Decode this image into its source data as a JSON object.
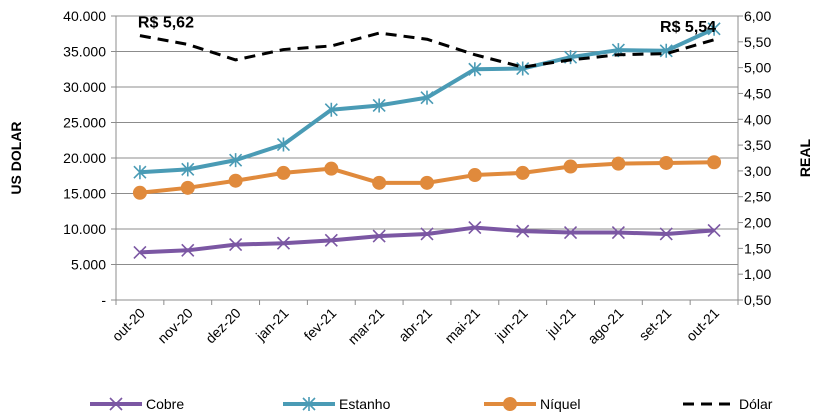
{
  "chart_data": {
    "type": "line",
    "categories": [
      "out-20",
      "nov-20",
      "dez-20",
      "jan-21",
      "fev-21",
      "mar-21",
      "abr-21",
      "mai-21",
      "jun-21",
      "jul-21",
      "ago-21",
      "set-21",
      "out-21"
    ],
    "ylabel": "US DOLAR",
    "y2label": "REAL",
    "ylim": [
      0,
      40000
    ],
    "y2lim": [
      0.5,
      6.0
    ],
    "y_ticks": [
      "-",
      "5.000",
      "10.000",
      "15.000",
      "20.000",
      "25.000",
      "30.000",
      "35.000",
      "40.000"
    ],
    "y2_ticks": [
      "0,50",
      "1,00",
      "1,50",
      "2,00",
      "2,50",
      "3,00",
      "3,50",
      "4,00",
      "4,50",
      "5,00",
      "5,50",
      "6,00"
    ],
    "grid": true,
    "legend_position": "bottom",
    "series": [
      {
        "name": "Cobre",
        "axis": "left",
        "color": "#7b57a3",
        "marker": "x",
        "values": [
          6700,
          7000,
          7800,
          8000,
          8400,
          9000,
          9300,
          10200,
          9700,
          9500,
          9500,
          9300,
          9800
        ]
      },
      {
        "name": "Estanho",
        "axis": "left",
        "color": "#4a9bb5",
        "marker": "star",
        "values": [
          18000,
          18400,
          19700,
          21900,
          26800,
          27400,
          28500,
          32500,
          32600,
          34200,
          35200,
          35100,
          38200
        ]
      },
      {
        "name": "Níquel",
        "axis": "left",
        "color": "#e08a3c",
        "marker": "circle",
        "values": [
          15100,
          15800,
          16800,
          17900,
          18500,
          16500,
          16500,
          17600,
          17900,
          18800,
          19200,
          19300,
          19400
        ]
      },
      {
        "name": "Dólar",
        "axis": "right",
        "color": "#000000",
        "marker": "none",
        "dash": true,
        "values": [
          5.62,
          5.45,
          5.15,
          5.35,
          5.42,
          5.67,
          5.55,
          5.25,
          5.01,
          5.15,
          5.25,
          5.27,
          5.54
        ]
      }
    ],
    "annotations": [
      {
        "text": "R$ 5,62",
        "category": "out-20"
      },
      {
        "text": "R$ 5,54",
        "category": "out-21"
      }
    ]
  }
}
